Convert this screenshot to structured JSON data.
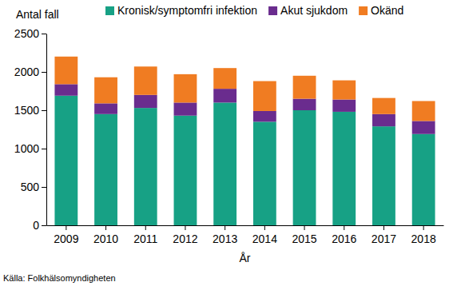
{
  "chart_data": {
    "type": "bar",
    "stacked": true,
    "y_label": "Antal fall",
    "x_label": "År",
    "source": "Källa: Folkhälsomyndigheten",
    "legend": "top",
    "grid": false,
    "categories": [
      "2009",
      "2010",
      "2011",
      "2012",
      "2013",
      "2014",
      "2015",
      "2016",
      "2017",
      "2018"
    ],
    "series": [
      {
        "name": "Kronisk/symptomfri infektion",
        "color": "#17a185",
        "values": [
          1690,
          1450,
          1530,
          1430,
          1600,
          1350,
          1500,
          1480,
          1290,
          1190
        ]
      },
      {
        "name": "Akut sjukdom",
        "color": "#6a2c8e",
        "values": [
          150,
          140,
          170,
          170,
          180,
          140,
          150,
          160,
          160,
          170
        ]
      },
      {
        "name": "Okänd",
        "color": "#f07c22",
        "values": [
          360,
          340,
          370,
          370,
          270,
          390,
          300,
          250,
          210,
          260
        ]
      }
    ],
    "ylim": [
      0,
      2500
    ],
    "yticks": [
      0,
      500,
      1000,
      1500,
      2000,
      2500
    ]
  }
}
